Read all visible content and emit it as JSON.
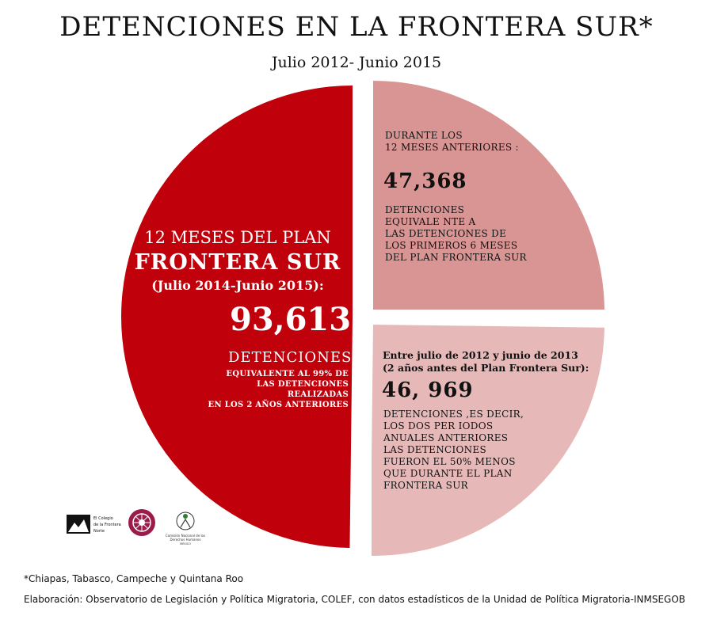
{
  "header": {
    "title": "DETENCIONES EN LA FRONTERA SUR*",
    "subtitle": "Julio 2012- Junio 2015"
  },
  "chart_data": {
    "type": "pie",
    "title": "DETENCIONES EN LA FRONTERA SUR*",
    "subtitle": "Julio 2012- Junio 2015",
    "slices": [
      {
        "label": "12 MESES DEL PLAN FRONTERA SUR (Julio 2014-Junio 2015)",
        "value": 93613,
        "color": "#c0000a"
      },
      {
        "label": "DURANTE LOS 12 MESES ANTERIORES",
        "value": 47368,
        "color": "#d99594"
      },
      {
        "label": "Entre julio de 2012 y junio de 2013",
        "value": 46969,
        "color": "#e6b9b8"
      }
    ]
  },
  "slice_main": {
    "line1": "12 MESES DEL PLAN",
    "line2": "FRONTERA SUR",
    "period": "(Julio 2014-Junio 2015):",
    "number": "93,613",
    "unit": "DETENCIONES",
    "note": [
      "EQUIVALENTE  AL 99% DE",
      "LAS DETENCIONES REALIZADAS",
      "EN LOS 2 AÑOS ANTERIORES"
    ]
  },
  "slice_top": {
    "intro": [
      "DURANTE  LOS",
      "12 MESES ANTERIORES :"
    ],
    "number": "47,368",
    "note": [
      "DETENCIONES",
      "EQUIVALE NTE A",
      "LAS DETENCIONES DE",
      "LOS PRIMEROS 6 MESES",
      "DEL PLAN FRONTERA SUR"
    ]
  },
  "slice_bottom": {
    "intro": [
      "Entre julio de 2012 y junio de 2013",
      "(2 años antes del Plan Frontera Sur):"
    ],
    "number": "46, 969",
    "note": [
      "DETENCIONES ,ES DECIR,",
      "LOS DOS PER IODOS",
      "ANUALES ANTERIORES",
      "LAS DETENCIONES",
      "FUERON EL 50% MENOS",
      "QUE DURANTE EL PLAN",
      "FRONTERA SUR"
    ]
  },
  "logos": {
    "colef": [
      "El Colegio",
      "de la Frontera",
      "Norte"
    ],
    "cndh": [
      "Comisión Nacional de los",
      "Derechos Humanos",
      "MÉXICO"
    ]
  },
  "footer": {
    "note": "*Chiapas, Tabasco, Campeche y Quintana Roo",
    "source": "Elaboración: Observatorio de Legislación y Política Migratoria, COLEF, con datos estadísticos de la Unidad de Política Migratoria-INMSEGOB"
  }
}
